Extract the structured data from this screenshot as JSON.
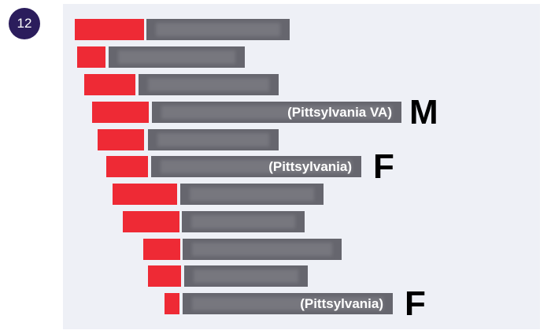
{
  "badge": "12",
  "labeled_rows": [
    {
      "label": "(Pittsylvania VA)",
      "tag": "M"
    },
    {
      "label": "(Pittsylvania)",
      "tag": "F"
    },
    {
      "label": "(Pittsylvania)",
      "tag": "F"
    }
  ]
}
